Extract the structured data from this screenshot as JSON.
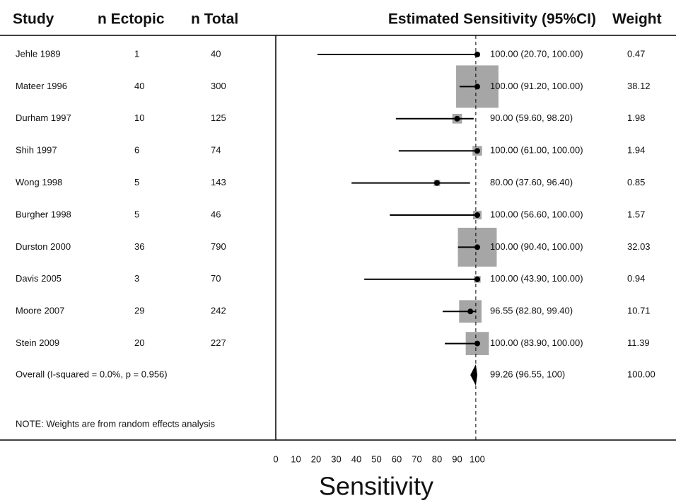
{
  "chart_data": {
    "type": "forest",
    "columns": [
      "Study",
      "n Ectopic",
      "n Total",
      "Estimated Sensitivity (95%CI)",
      "Weight"
    ],
    "categories": [
      "Jehle 1989",
      "Mateer 1996",
      "Durham 1997",
      "Shih 1997",
      "Wong 1998",
      "Burgher 1998",
      "Durston 2000",
      "Davis 2005",
      "Moore 2007",
      "Stein 2009"
    ],
    "n_ectopic": [
      1,
      40,
      10,
      6,
      5,
      5,
      36,
      3,
      29,
      20
    ],
    "n_total": [
      40,
      300,
      125,
      74,
      143,
      46,
      790,
      70,
      242,
      227
    ],
    "values": [
      100,
      100,
      90,
      100,
      80,
      100,
      100,
      100,
      96.55,
      100
    ],
    "lower": [
      20.7,
      91.2,
      59.6,
      61,
      37.6,
      56.6,
      90.4,
      43.9,
      82.8,
      83.9
    ],
    "upper": [
      100,
      100,
      98.2,
      100,
      96.4,
      100,
      100,
      100,
      99.4,
      100
    ],
    "value_labels": [
      "100.00 (20.70, 100.00)",
      "100.00 (91.20, 100.00)",
      "90.00 (59.60, 98.20)",
      "100.00 (61.00, 100.00)",
      "80.00 (37.60, 96.40)",
      "100.00 (56.60, 100.00)",
      "100.00 (90.40, 100.00)",
      "100.00 (43.90, 100.00)",
      "96.55 (82.80, 99.40)",
      "100.00 (83.90, 100.00)"
    ],
    "weights": [
      0.47,
      38.12,
      1.98,
      1.94,
      0.85,
      1.57,
      32.03,
      0.94,
      10.71,
      11.39
    ],
    "overall": {
      "label": "Overall  (I-squared = 0.0%, p = 0.956)",
      "value": 99.26,
      "lower": 96.55,
      "upper": 100,
      "value_label": "99.26 (96.55, 100)",
      "weight": 100,
      "weight_label": "100.00"
    },
    "note": "NOTE: Weights are from random effects analysis",
    "xlabel": "Sensitivity",
    "xlim": [
      0,
      100
    ],
    "xticks": [
      0,
      10,
      20,
      30,
      40,
      50,
      60,
      70,
      80,
      90,
      100
    ],
    "color": "#a6a6a6"
  }
}
